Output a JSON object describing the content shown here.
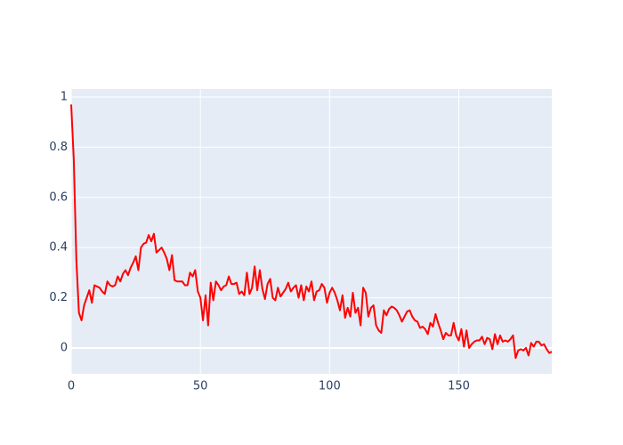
{
  "chart_data": {
    "type": "line",
    "x": [
      0,
      1,
      2,
      3,
      4,
      5,
      6,
      7,
      8,
      9,
      10,
      11,
      12,
      13,
      14,
      15,
      16,
      17,
      18,
      19,
      20,
      21,
      22,
      23,
      24,
      25,
      26,
      27,
      28,
      29,
      30,
      31,
      32,
      33,
      34,
      35,
      36,
      37,
      38,
      39,
      40,
      41,
      42,
      43,
      44,
      45,
      46,
      47,
      48,
      49,
      50,
      51,
      52,
      53,
      54,
      55,
      56,
      57,
      58,
      59,
      60,
      61,
      62,
      63,
      64,
      65,
      66,
      67,
      68,
      69,
      70,
      71,
      72,
      73,
      74,
      75,
      76,
      77,
      78,
      79,
      80,
      81,
      82,
      83,
      84,
      85,
      86,
      87,
      88,
      89,
      90,
      91,
      92,
      93,
      94,
      95,
      96,
      97,
      98,
      99,
      100,
      101,
      102,
      103,
      104,
      105,
      106,
      107,
      108,
      109,
      110,
      111,
      112,
      113,
      114,
      115,
      116,
      117,
      118,
      119,
      120,
      121,
      122,
      123,
      124,
      125,
      126,
      127,
      128,
      129,
      130,
      131,
      132,
      133,
      134,
      135,
      136,
      137,
      138,
      139,
      140,
      141,
      142,
      143,
      144,
      145,
      146,
      147,
      148,
      149,
      150,
      151,
      152,
      153,
      154,
      155,
      156,
      157,
      158,
      159,
      160,
      161,
      162,
      163,
      164,
      165,
      166,
      167,
      168,
      169,
      170,
      171,
      172,
      173,
      174,
      175,
      176,
      177,
      178,
      179,
      180,
      181,
      182,
      183,
      184,
      185,
      186
    ],
    "series": [
      {
        "color": "#ff0000",
        "values": [
          0.97,
          0.75,
          0.35,
          0.14,
          0.11,
          0.17,
          0.2,
          0.23,
          0.18,
          0.25,
          0.245,
          0.24,
          0.225,
          0.215,
          0.265,
          0.25,
          0.245,
          0.25,
          0.285,
          0.265,
          0.295,
          0.31,
          0.29,
          0.32,
          0.34,
          0.365,
          0.31,
          0.4,
          0.415,
          0.42,
          0.45,
          0.425,
          0.455,
          0.38,
          0.39,
          0.4,
          0.38,
          0.355,
          0.31,
          0.37,
          0.27,
          0.265,
          0.265,
          0.265,
          0.25,
          0.25,
          0.3,
          0.285,
          0.31,
          0.225,
          0.2,
          0.11,
          0.21,
          0.09,
          0.26,
          0.19,
          0.265,
          0.25,
          0.23,
          0.245,
          0.25,
          0.285,
          0.255,
          0.255,
          0.26,
          0.215,
          0.225,
          0.21,
          0.3,
          0.215,
          0.24,
          0.325,
          0.23,
          0.31,
          0.235,
          0.195,
          0.255,
          0.275,
          0.2,
          0.19,
          0.24,
          0.205,
          0.22,
          0.235,
          0.26,
          0.225,
          0.24,
          0.25,
          0.2,
          0.25,
          0.19,
          0.245,
          0.225,
          0.265,
          0.19,
          0.225,
          0.23,
          0.255,
          0.24,
          0.18,
          0.22,
          0.24,
          0.22,
          0.19,
          0.15,
          0.21,
          0.12,
          0.16,
          0.125,
          0.22,
          0.14,
          0.16,
          0.09,
          0.24,
          0.22,
          0.125,
          0.16,
          0.17,
          0.09,
          0.07,
          0.06,
          0.15,
          0.13,
          0.155,
          0.165,
          0.16,
          0.15,
          0.13,
          0.105,
          0.125,
          0.145,
          0.15,
          0.125,
          0.11,
          0.105,
          0.08,
          0.085,
          0.075,
          0.055,
          0.1,
          0.085,
          0.135,
          0.1,
          0.07,
          0.035,
          0.06,
          0.05,
          0.05,
          0.1,
          0.05,
          0.03,
          0.075,
          0.005,
          0.07,
          0.0,
          0.015,
          0.025,
          0.03,
          0.03,
          0.045,
          0.015,
          0.04,
          0.035,
          -0.005,
          0.055,
          0.015,
          0.05,
          0.025,
          0.03,
          0.025,
          0.035,
          0.05,
          -0.04,
          -0.01,
          -0.005,
          -0.01,
          0.0,
          -0.03,
          0.02,
          0.005,
          0.025,
          0.025,
          0.01,
          0.015,
          -0.005,
          -0.02,
          -0.015
        ]
      }
    ],
    "xlim": [
      0,
      186
    ],
    "ylim": [
      -0.103,
      1.032
    ],
    "xticks": [
      0,
      50,
      100,
      150
    ],
    "yticks": [
      0,
      0.2,
      0.4,
      0.6,
      0.8,
      1
    ],
    "grid": true
  }
}
